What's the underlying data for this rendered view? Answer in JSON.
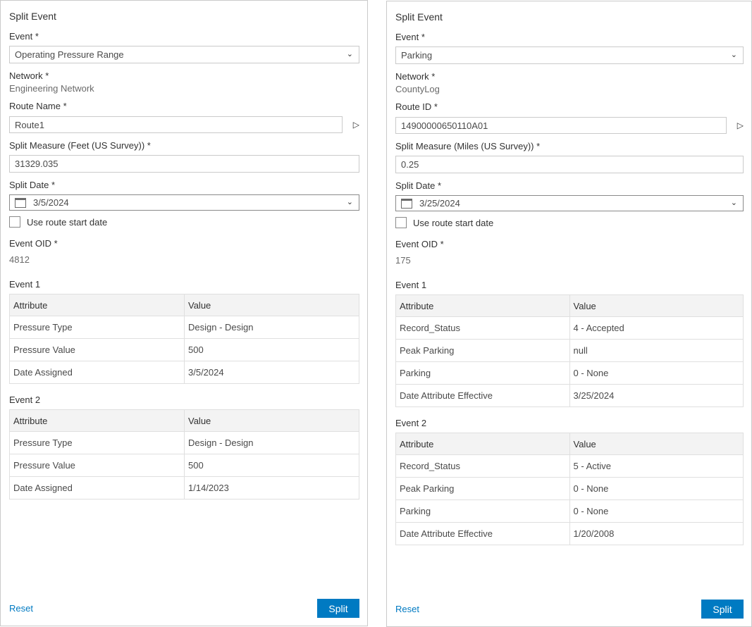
{
  "accent": "#007ac2",
  "panels": [
    {
      "title": "Split Event",
      "event_label": "Event *",
      "event_value": "Operating Pressure Range",
      "network_label": "Network *",
      "network_value": "Engineering Network",
      "route_label": "Route Name *",
      "route_value": "Route1",
      "measure_label": "Split Measure (Feet (US Survey)) *",
      "measure_value": "31329.035",
      "date_label": "Split Date *",
      "date_value": "3/5/2024",
      "checkbox_label": "Use route start date",
      "oid_label": "Event OID *",
      "oid_value": "4812",
      "tables": [
        {
          "label": "Event 1",
          "headers": [
            "Attribute",
            "Value"
          ],
          "rows": [
            [
              "Pressure Type",
              "Design - Design"
            ],
            [
              "Pressure Value",
              "500"
            ],
            [
              "Date Assigned",
              "3/5/2024"
            ]
          ]
        },
        {
          "label": "Event 2",
          "headers": [
            "Attribute",
            "Value"
          ],
          "rows": [
            [
              "Pressure Type",
              "Design - Design"
            ],
            [
              "Pressure Value",
              "500"
            ],
            [
              "Date Assigned",
              "1/14/2023"
            ]
          ]
        }
      ],
      "reset": "Reset",
      "split": "Split"
    },
    {
      "title": "Split Event",
      "event_label": "Event *",
      "event_value": "Parking",
      "network_label": "Network *",
      "network_value": "CountyLog",
      "route_label": "Route ID *",
      "route_value": "14900000650110A01",
      "measure_label": "Split Measure (Miles (US Survey)) *",
      "measure_value": "0.25",
      "date_label": "Split Date *",
      "date_value": "3/25/2024",
      "checkbox_label": "Use route start date",
      "oid_label": "Event OID *",
      "oid_value": "175",
      "tables": [
        {
          "label": "Event 1",
          "headers": [
            "Attribute",
            "Value"
          ],
          "rows": [
            [
              "Record_Status",
              "4 - Accepted"
            ],
            [
              "Peak Parking",
              "null"
            ],
            [
              "Parking",
              "0 - None"
            ],
            [
              "Date Attribute Effective",
              "3/25/2024"
            ]
          ]
        },
        {
          "label": "Event 2",
          "headers": [
            "Attribute",
            "Value"
          ],
          "rows": [
            [
              "Record_Status",
              "5 - Active"
            ],
            [
              "Peak Parking",
              "0 - None"
            ],
            [
              "Parking",
              "0 - None"
            ],
            [
              "Date Attribute Effective",
              "1/20/2008"
            ]
          ]
        }
      ],
      "reset": "Reset",
      "split": "Split"
    }
  ]
}
